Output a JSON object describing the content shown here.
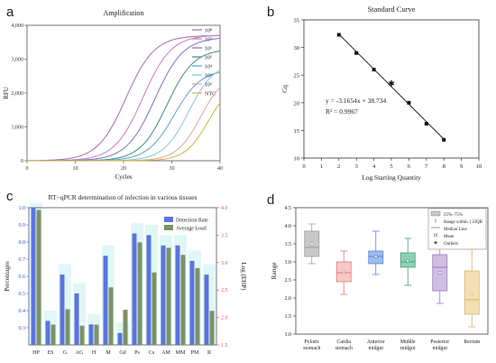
{
  "panels": {
    "a": {
      "letter": "a"
    },
    "b": {
      "letter": "b"
    },
    "c": {
      "letter": "c"
    },
    "d": {
      "letter": "d"
    }
  },
  "chart_data": [
    {
      "id": "a",
      "type": "line",
      "title": "Amplification",
      "xlabel": "Cycles",
      "ylabel": "RFU",
      "xlim": [
        0,
        40
      ],
      "ylim": [
        0,
        4000
      ],
      "xticks": [
        0,
        10,
        20,
        30,
        40
      ],
      "yticks": [
        0,
        1000,
        2000,
        3000,
        4000
      ],
      "ytick_labels": [
        "0",
        "1,000",
        "2,000",
        "3,000",
        "4,000"
      ],
      "legend_position": "right",
      "series": [
        {
          "name": "10⁸",
          "color": "#9c6fb0",
          "midpoint": 20.5,
          "plateau": 3700,
          "slope": 0.34
        },
        {
          "name": "10⁷",
          "color": "#c57fb7",
          "midpoint": 24.0,
          "plateau": 3720,
          "slope": 0.34
        },
        {
          "name": "10⁶",
          "color": "#7d6fc9",
          "midpoint": 26.5,
          "plateau": 3650,
          "slope": 0.34
        },
        {
          "name": "10⁵",
          "color": "#3e8f76",
          "midpoint": 29.0,
          "plateau": 3300,
          "slope": 0.36
        },
        {
          "name": "10⁴",
          "color": "#5aa0d4",
          "midpoint": 30.5,
          "plateau": 2700,
          "slope": 0.36
        },
        {
          "name": "10³",
          "color": "#7fc9d8",
          "midpoint": 33.5,
          "plateau": 2900,
          "slope": 0.38
        },
        {
          "name": "10²",
          "color": "#e6a2a2",
          "midpoint": 36.0,
          "plateau": 2600,
          "slope": 0.4
        },
        {
          "name": "NTC",
          "color": "#d2b24b",
          "midpoint": 37.5,
          "plateau": 2300,
          "slope": 0.42
        }
      ]
    },
    {
      "id": "b",
      "type": "scatter",
      "title": "Standard Curve",
      "xlabel": "Log Starting Quantity",
      "ylabel": "Cq",
      "xlim": [
        0,
        10
      ],
      "ylim": [
        10,
        35
      ],
      "xticks": [
        0,
        1,
        2,
        3,
        4,
        5,
        6,
        7,
        8,
        9,
        10
      ],
      "yticks": [
        10,
        15,
        20,
        25,
        30,
        35
      ],
      "points": [
        {
          "x": 2,
          "y": 32.3
        },
        {
          "x": 3,
          "y": 29.0
        },
        {
          "x": 4,
          "y": 26.0
        },
        {
          "x": 5,
          "y": 23.5,
          "marker": "star"
        },
        {
          "x": 6,
          "y": 20.0
        },
        {
          "x": 7,
          "y": 16.2
        },
        {
          "x": 8,
          "y": 13.3
        }
      ],
      "fit": {
        "slope": -3.1654,
        "intercept": 38.734,
        "x_range": [
          2,
          8
        ]
      },
      "equation": "y = -3.1654x + 38.734",
      "r2": "R² = 0.9967"
    },
    {
      "id": "c",
      "type": "bar",
      "title": "RT−qPCR determination of infection in various tissues",
      "ylabel": "Percentages",
      "y2label": "Log (EHP)",
      "ylim": [
        0.2,
        1.0
      ],
      "yticks": [
        0.3,
        0.4,
        0.5,
        0.6,
        0.7,
        0.8,
        0.9,
        1.0
      ],
      "y2lim": [
        1.5,
        4.0
      ],
      "y2ticks": [
        1.5,
        2.0,
        2.5,
        3.0,
        3.5,
        4.0
      ],
      "categories": [
        "HP",
        "ES",
        "G",
        "AG",
        "H",
        "M",
        "Gd",
        "Ps",
        "Cs",
        "AM",
        "MM",
        "PM",
        "R"
      ],
      "series": [
        {
          "name": "Detection Rate",
          "axis": "left",
          "color": "#5b74dd",
          "values": [
            1.0,
            0.34,
            0.61,
            0.5,
            0.32,
            0.72,
            0.27,
            0.85,
            0.84,
            0.78,
            0.78,
            0.69,
            0.61
          ]
        },
        {
          "name": "Average Load",
          "axis": "right",
          "color": "#7c9265",
          "values": [
            3.96,
            1.87,
            2.15,
            1.85,
            1.87,
            2.55,
            2.14,
            3.37,
            2.82,
            3.27,
            3.14,
            2.9,
            2.12
          ]
        }
      ],
      "highlight_colors": {
        "cyan": "#d4f4f4",
        "pink": "#fbdde9",
        "red": "#d9535e"
      },
      "legend_position": "top-right"
    },
    {
      "id": "d",
      "type": "box",
      "ylabel": "Range",
      "ylim": [
        1.0,
        4.5
      ],
      "yticks": [
        1.0,
        1.5,
        2.0,
        2.5,
        3.0,
        3.5,
        4.0,
        4.5
      ],
      "categories": [
        "Pyloric\nstomach",
        "Cardia\nstomach",
        "Anterior\nmidgut",
        "Middle\nmidgut",
        "Posterior\nmidgut",
        "Rectum"
      ],
      "boxes": [
        {
          "q1": 3.15,
          "median": 3.4,
          "q3": 3.85,
          "mean": 3.5,
          "min": 2.95,
          "max": 4.05,
          "color": "#9a9a9a",
          "fill": "#c8c8c8"
        },
        {
          "q1": 2.45,
          "median": 2.7,
          "q3": 3.0,
          "mean": 2.72,
          "min": 2.1,
          "max": 3.3,
          "color": "#e07b7b",
          "fill": "#f6c9c9"
        },
        {
          "q1": 2.95,
          "median": 3.15,
          "q3": 3.3,
          "mean": 3.15,
          "min": 2.65,
          "max": 3.85,
          "color": "#5d86cf",
          "fill": "#9cbcec"
        },
        {
          "q1": 2.85,
          "median": 3.0,
          "q3": 3.25,
          "mean": 3.03,
          "min": 2.35,
          "max": 3.65,
          "color": "#3fa07a",
          "fill": "#8fd0b4"
        },
        {
          "q1": 2.2,
          "median": 2.85,
          "q3": 3.2,
          "mean": 2.7,
          "min": 1.85,
          "max": 4.2,
          "color": "#9a79b8",
          "fill": "#d0bde4"
        },
        {
          "q1": 1.55,
          "median": 1.95,
          "q3": 2.75,
          "mean": 2.1,
          "min": 1.2,
          "max": 3.35,
          "color": "#d7b46a",
          "fill": "#f2e0b3"
        }
      ],
      "legend": [
        "25%~75%",
        "Range within 1.5IQR",
        "Median Line",
        "Mean",
        "Outliers"
      ],
      "legend_position": "top-right"
    }
  ]
}
